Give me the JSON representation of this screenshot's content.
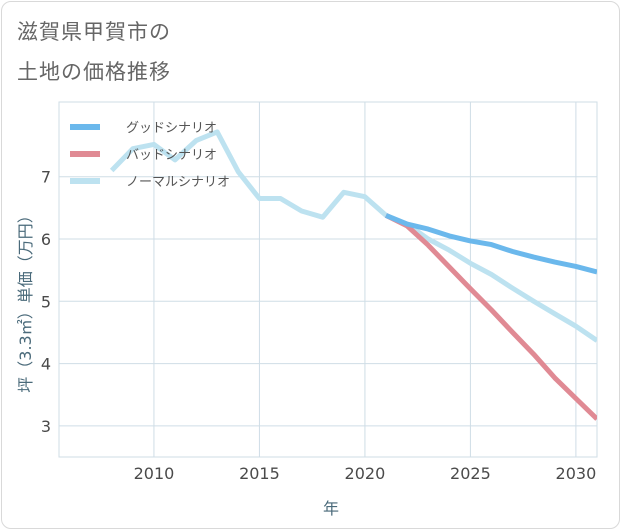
{
  "title_line1": "滋賀県甲賀市の",
  "title_line2": "土地の価格推移",
  "chart_data": {
    "type": "line",
    "xlabel": "年",
    "ylabel": "坪（3.3㎡）単価（万円）",
    "xlim": [
      2005.5,
      2031
    ],
    "ylim": [
      2.5,
      8.2
    ],
    "xticks": [
      2010,
      2015,
      2020,
      2025,
      2030
    ],
    "xtick_labels": [
      "2010",
      "2015",
      "2020",
      "2025",
      "2030"
    ],
    "yticks": [
      3,
      4,
      5,
      6,
      7
    ],
    "ytick_labels": [
      "3",
      "4",
      "5",
      "6",
      "7"
    ],
    "grid": true,
    "legend_position": "top-left",
    "series": [
      {
        "name": "グッドシナリオ",
        "color": "#6bb8ec",
        "x": [
          2021,
          2022,
          2023,
          2024,
          2025,
          2026,
          2027,
          2028,
          2029,
          2030,
          2031
        ],
        "y": [
          6.38,
          6.24,
          6.16,
          6.05,
          5.97,
          5.91,
          5.8,
          5.71,
          5.63,
          5.56,
          5.47
        ]
      },
      {
        "name": "バッドシナリオ",
        "color": "#e08a94",
        "x": [
          2021,
          2022,
          2023,
          2024,
          2025,
          2026,
          2027,
          2028,
          2029,
          2030,
          2031
        ],
        "y": [
          6.38,
          6.21,
          5.9,
          5.55,
          5.2,
          4.86,
          4.5,
          4.15,
          3.77,
          3.44,
          3.11
        ]
      },
      {
        "name": "ノーマルシナリオ",
        "color": "#bde2f0",
        "x": [
          2008,
          2009,
          2010,
          2011,
          2012,
          2013,
          2014,
          2015,
          2016,
          2017,
          2018,
          2019,
          2020,
          2021,
          2022,
          2023,
          2024,
          2025,
          2026,
          2027,
          2028,
          2029,
          2030,
          2031
        ],
        "y": [
          7.1,
          7.45,
          7.52,
          7.27,
          7.58,
          7.72,
          7.08,
          6.65,
          6.65,
          6.45,
          6.35,
          6.75,
          6.68,
          6.38,
          6.24,
          6.0,
          5.82,
          5.61,
          5.43,
          5.21,
          5.0,
          4.8,
          4.6,
          4.37
        ]
      }
    ]
  }
}
